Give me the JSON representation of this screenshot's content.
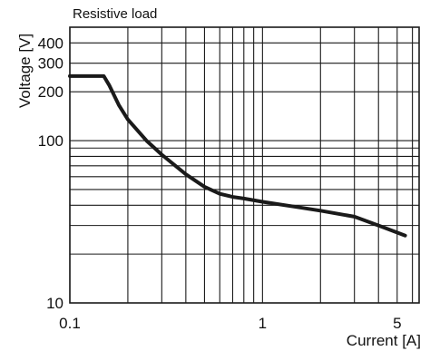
{
  "chart_data": {
    "type": "line",
    "title": "Resistive load",
    "xlabel": "Current [A]",
    "ylabel": "Voltage [V]",
    "x_scale": "log",
    "y_scale": "log",
    "xlim": [
      0.1,
      6.5
    ],
    "ylim": [
      10,
      500
    ],
    "grid": true,
    "x_grid_values": [
      0.1,
      0.2,
      0.3,
      0.4,
      0.5,
      0.6,
      0.7,
      0.8,
      0.9,
      1,
      2,
      3,
      4,
      5,
      6
    ],
    "y_grid_values": [
      10,
      20,
      30,
      40,
      50,
      60,
      70,
      80,
      90,
      100,
      200,
      300,
      400,
      500
    ],
    "x_tick_labels": [
      {
        "value": 0.1,
        "label": "0.1"
      },
      {
        "value": 1,
        "label": "1"
      },
      {
        "value": 5,
        "label": "5"
      }
    ],
    "y_tick_labels": [
      {
        "value": 10,
        "label": "10"
      },
      {
        "value": 100,
        "label": "100"
      },
      {
        "value": 200,
        "label": "200"
      },
      {
        "value": 300,
        "label": "300"
      },
      {
        "value": 400,
        "label": "400"
      }
    ],
    "series": [
      {
        "points": [
          [
            0.1,
            250
          ],
          [
            0.15,
            250
          ],
          [
            0.16,
            220
          ],
          [
            0.18,
            165
          ],
          [
            0.2,
            135
          ],
          [
            0.25,
            100
          ],
          [
            0.3,
            82
          ],
          [
            0.4,
            62
          ],
          [
            0.5,
            52
          ],
          [
            0.6,
            47
          ],
          [
            0.7,
            45
          ],
          [
            0.8,
            44
          ],
          [
            1,
            42
          ],
          [
            1.5,
            39
          ],
          [
            2,
            37
          ],
          [
            3,
            34
          ],
          [
            4,
            30
          ],
          [
            5.5,
            26
          ]
        ]
      }
    ]
  },
  "colors": {
    "line": "#1a1a1a",
    "grid": "#1a1a1a",
    "text": "#111111"
  }
}
